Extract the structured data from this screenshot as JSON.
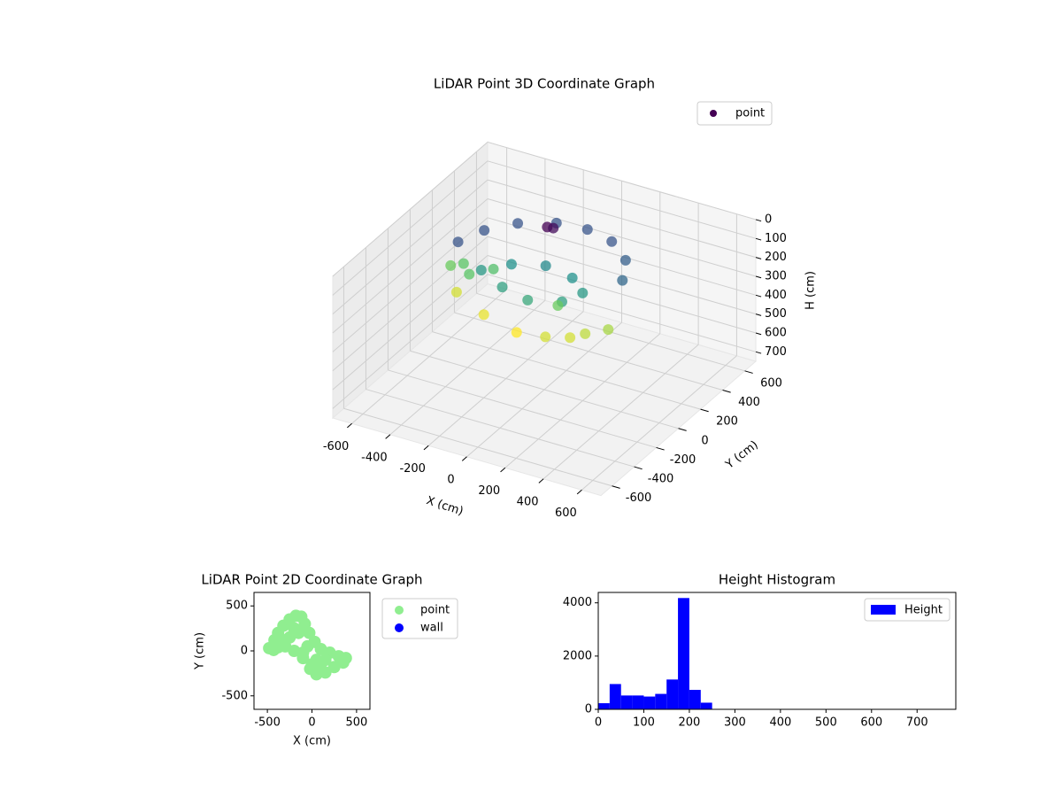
{
  "chart_data": [
    {
      "type": "scatter3d",
      "title": "LiDAR Point 3D Coordinate Graph",
      "xlabel": "X (cm)",
      "ylabel": "Y (cm)",
      "zlabel": "H (cm)",
      "xlim": [
        -700,
        700
      ],
      "ylim": [
        -700,
        700
      ],
      "zlim": [
        0,
        750
      ],
      "z_inverted": true,
      "xticks": [
        -600,
        -400,
        -200,
        0,
        200,
        400,
        600
      ],
      "yticks": [
        -600,
        -400,
        -200,
        0,
        200,
        400,
        600
      ],
      "zticks": [
        0,
        100,
        200,
        300,
        400,
        500,
        600,
        700
      ],
      "colormap": [
        "#440154",
        "#3b528b",
        "#21918c",
        "#5ec962",
        "#fde725"
      ],
      "legend": "upper right",
      "series": [
        {
          "name": "point",
          "color": "#440154",
          "x": [
            -450,
            -400,
            -300,
            -150,
            0,
            150,
            280,
            350,
            -300,
            -200,
            -50,
            100,
            200,
            150,
            0,
            -150,
            -400,
            -200,
            0,
            150,
            300,
            380,
            250,
            100,
            -450,
            -500,
            -380,
            -300,
            -100,
            -80
          ],
          "y": [
            0,
            150,
            280,
            370,
            390,
            350,
            250,
            100,
            -50,
            50,
            100,
            80,
            0,
            -100,
            -150,
            -120,
            -100,
            -200,
            -250,
            -250,
            -150,
            -80,
            -200,
            -50,
            50,
            20,
            -20,
            60,
            200,
            220
          ],
          "z": [
            100,
            100,
            100,
            100,
            100,
            100,
            110,
            120,
            180,
            170,
            160,
            170,
            180,
            190,
            200,
            190,
            300,
            310,
            320,
            300,
            290,
            280,
            300,
            250,
            240,
            250,
            240,
            230,
            20,
            30
          ]
        }
      ]
    },
    {
      "type": "scatter",
      "title": "LiDAR Point 2D Coordinate Graph",
      "xlabel": "X (cm)",
      "ylabel": "Y (cm)",
      "xlim": [
        -650,
        650
      ],
      "ylim": [
        -650,
        650
      ],
      "xticks": [
        -500,
        0,
        500
      ],
      "yticks": [
        -500,
        0,
        500
      ],
      "legend": "outside right",
      "series": [
        {
          "name": "point",
          "color": "#90ee90",
          "x": [
            -480,
            -420,
            -380,
            -320,
            -250,
            -180,
            -120,
            -80,
            -30,
            30,
            100,
            200,
            300,
            380,
            350,
            250,
            150,
            50,
            -20,
            -100,
            -200,
            -300,
            -380,
            -250,
            -150,
            -50,
            50,
            150,
            -100,
            -200,
            0,
            100,
            -430,
            -350
          ],
          "y": [
            30,
            120,
            200,
            280,
            350,
            390,
            380,
            300,
            200,
            100,
            20,
            -20,
            -60,
            -80,
            -130,
            -180,
            -240,
            -260,
            -200,
            -80,
            0,
            50,
            40,
            150,
            200,
            50,
            -100,
            -100,
            -20,
            250,
            -150,
            -200,
            10,
            130
          ]
        },
        {
          "name": "wall",
          "color": "#0000ff",
          "x": [],
          "y": []
        }
      ]
    },
    {
      "type": "histogram",
      "title": "Height Histogram",
      "xlim": [
        0,
        785
      ],
      "ylim": [
        0,
        4390
      ],
      "xticks": [
        0,
        100,
        200,
        300,
        400,
        500,
        600,
        700
      ],
      "yticks": [
        0,
        2000,
        4000
      ],
      "legend": "upper right",
      "bins": [
        0,
        25,
        50,
        75,
        100,
        125,
        150,
        175,
        200,
        225,
        250,
        275,
        300,
        325,
        350,
        375,
        400,
        425,
        450,
        475,
        500,
        525,
        550,
        575,
        600,
        625,
        650,
        675,
        700,
        725,
        750
      ],
      "series": [
        {
          "name": "Height",
          "color": "#0000ff",
          "values": [
            230,
            950,
            520,
            520,
            480,
            580,
            1120,
            4180,
            730,
            250,
            0,
            0,
            0,
            0,
            0,
            0,
            0,
            0,
            0,
            0,
            0,
            0,
            0,
            0,
            0,
            0,
            0,
            0,
            0,
            0
          ]
        }
      ]
    }
  ]
}
